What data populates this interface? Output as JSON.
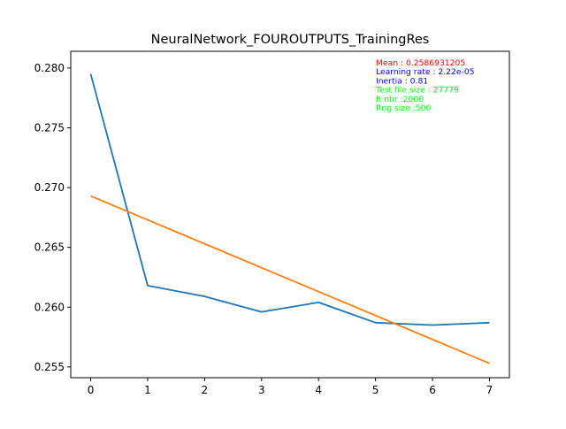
{
  "chart_data": {
    "type": "line",
    "title": "NeuralNetwork_FOUROUTPUTS_TrainingRes",
    "xlabel": "",
    "ylabel": "",
    "x": [
      0,
      1,
      2,
      3,
      4,
      5,
      6,
      7
    ],
    "xlim": [
      -0.35,
      7.35
    ],
    "ylim": [
      0.2541,
      0.2814
    ],
    "xticks": [
      0,
      1,
      2,
      3,
      4,
      5,
      6,
      7
    ],
    "xtick_labels": [
      "0",
      "1",
      "2",
      "3",
      "4",
      "5",
      "6",
      "7"
    ],
    "yticks": [
      0.255,
      0.26,
      0.265,
      0.27,
      0.275,
      0.28
    ],
    "ytick_labels": [
      "0.255",
      "0.260",
      "0.265",
      "0.270",
      "0.275",
      "0.280"
    ],
    "grid": false,
    "series": [
      {
        "color": "#1f77b4",
        "values": [
          0.2795,
          0.2618,
          0.2609,
          0.2596,
          0.2604,
          0.2587,
          0.2585,
          0.2587
        ]
      },
      {
        "color": "#ff7f0e",
        "values": [
          0.2693,
          0.2673,
          0.2653,
          0.2633,
          0.2613,
          0.2593,
          0.2573,
          0.2553
        ]
      }
    ],
    "annotations": [
      {
        "text": "Mean : 0.2586931205",
        "color": "#ff0000"
      },
      {
        "text": "Learning rate : 2.22e-05",
        "color": "#0000ff"
      },
      {
        "text": "Inertia : 0.81",
        "color": "#0000ff"
      },
      {
        "text": "Test file size : 27779",
        "color": "#00ff00"
      },
      {
        "text": "It nbr :2000",
        "color": "#00ff00"
      },
      {
        "text": "Rng size :500",
        "color": "#00ff00"
      }
    ]
  }
}
